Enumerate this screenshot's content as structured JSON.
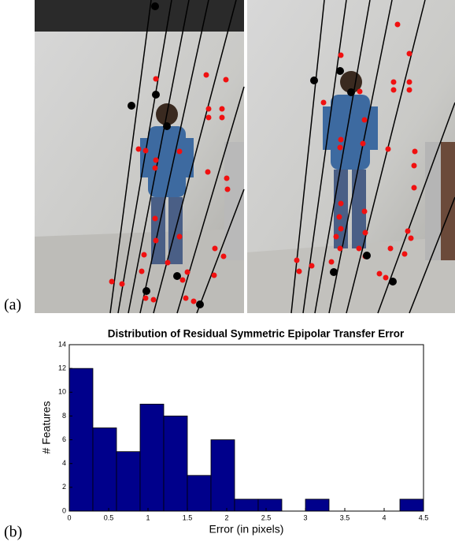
{
  "panel_a": {
    "label": "(a)"
  },
  "panel_b": {
    "label": "(b)"
  },
  "chart_data": {
    "type": "histogram",
    "title": "Distribution of Residual Symmetric Epipolar Transfer Error",
    "x_label": "Error (in pixels)",
    "y_label": "# Features",
    "bins": [
      0,
      0.3,
      0.6,
      0.9,
      1.2,
      1.5,
      1.8,
      2.1,
      2.4,
      2.7,
      3.0,
      3.3,
      3.6,
      3.9,
      4.2,
      4.5
    ],
    "values": [
      12,
      7,
      5,
      9,
      8,
      3,
      6,
      1,
      1,
      0,
      1,
      0,
      0,
      0,
      1
    ],
    "color": "#00008b",
    "xlim": [
      0,
      4.5
    ],
    "xticks": [
      0,
      0.5,
      1,
      1.5,
      2,
      2.5,
      3,
      3.5,
      4,
      4.5
    ],
    "ylim": [
      0,
      14
    ],
    "yticks": [
      0,
      2,
      4,
      6,
      8,
      10,
      12,
      14
    ]
  }
}
